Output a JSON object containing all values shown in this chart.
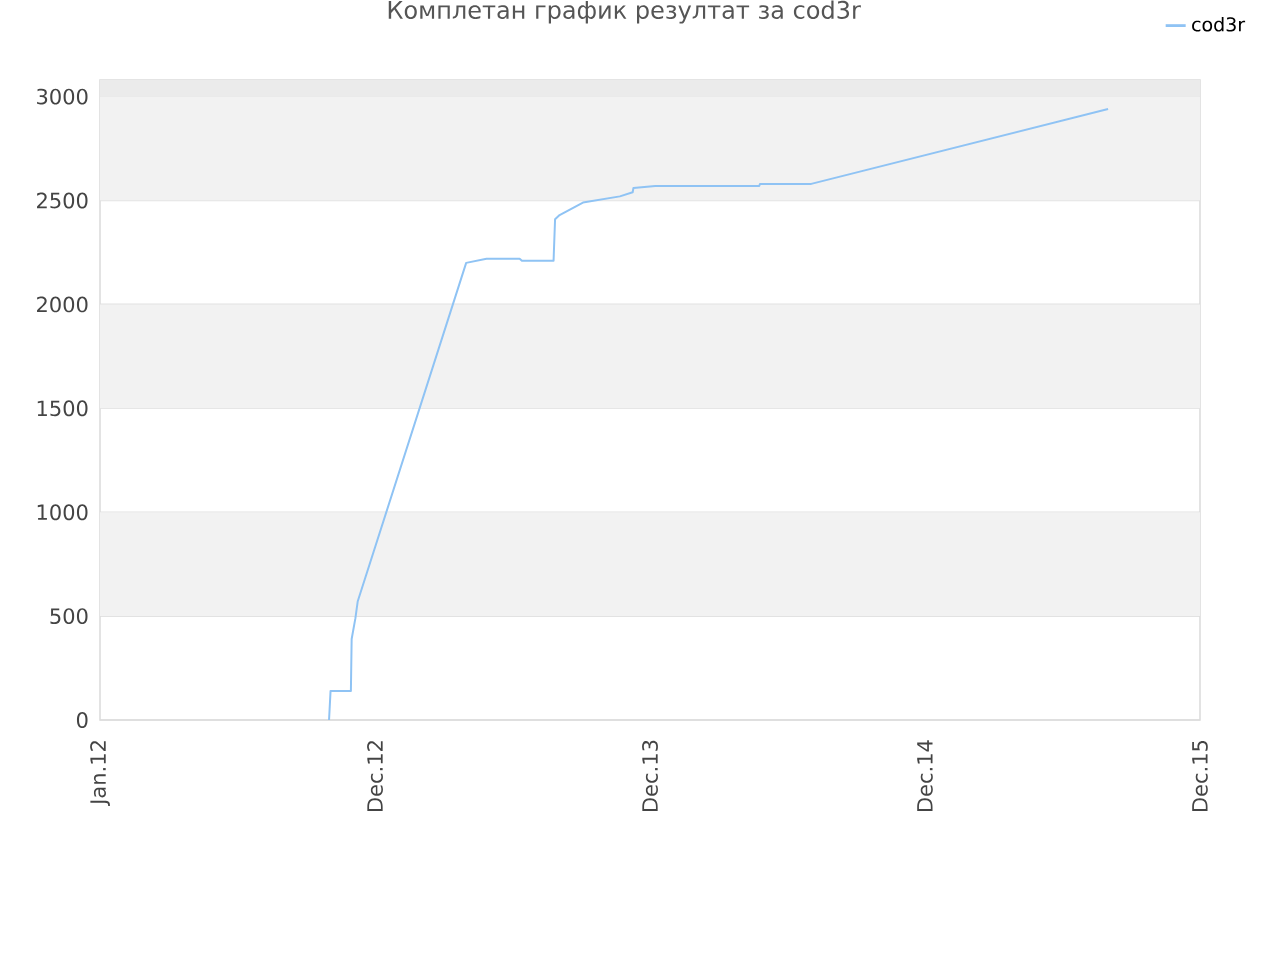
{
  "chart_data": {
    "type": "line",
    "title": "Комплетан график резултат за cod3r",
    "x": [
      "2012-10-31",
      "2012-11-02",
      "2012-11-29",
      "2012-11-30",
      "2012-12-05",
      "2012-12-08",
      "2013-05-01",
      "2013-05-28",
      "2013-07-11",
      "2013-07-14",
      "2013-08-25",
      "2013-08-27",
      "2013-09-02",
      "2013-10-03",
      "2013-11-21",
      "2013-12-08",
      "2013-12-09",
      "2014-01-07",
      "2014-05-25",
      "2014-05-26",
      "2014-08-02",
      "2015-08-31"
    ],
    "series": [
      {
        "name": "cod3r",
        "color": "#8fc3f4",
        "values": [
          0,
          140,
          140,
          390,
          490,
          570,
          2200,
          2220,
          2220,
          2210,
          2210,
          2410,
          2430,
          2490,
          2520,
          2540,
          2560,
          2570,
          2570,
          2580,
          2580,
          2940
        ]
      }
    ],
    "xlim": [
      "2012-01-01",
      "2015-12-31"
    ],
    "xticks": [
      {
        "value": "2012-01-01",
        "label": "Jan.12"
      },
      {
        "value": "2012-12-31",
        "label": "Dec.12"
      },
      {
        "value": "2013-12-31",
        "label": "Dec.13"
      },
      {
        "value": "2014-12-31",
        "label": "Dec.14"
      },
      {
        "value": "2015-12-31",
        "label": "Dec.15"
      }
    ],
    "ylim": [
      0,
      3080
    ],
    "yticks": [
      0,
      500,
      1000,
      1500,
      2000,
      2500,
      3000
    ],
    "grid": "y",
    "legend": "top right",
    "bands": [
      {
        "axis": "y",
        "from": 500,
        "to": 1000,
        "color": "#f2f2f2"
      },
      {
        "axis": "y",
        "from": 1500,
        "to": 2000,
        "color": "#f2f2f2"
      },
      {
        "axis": "y",
        "from": 2500,
        "to": 3000,
        "color": "#f2f2f2"
      },
      {
        "axis": "y",
        "from": 3000,
        "to": 3080,
        "color": "#ebebeb"
      }
    ]
  }
}
